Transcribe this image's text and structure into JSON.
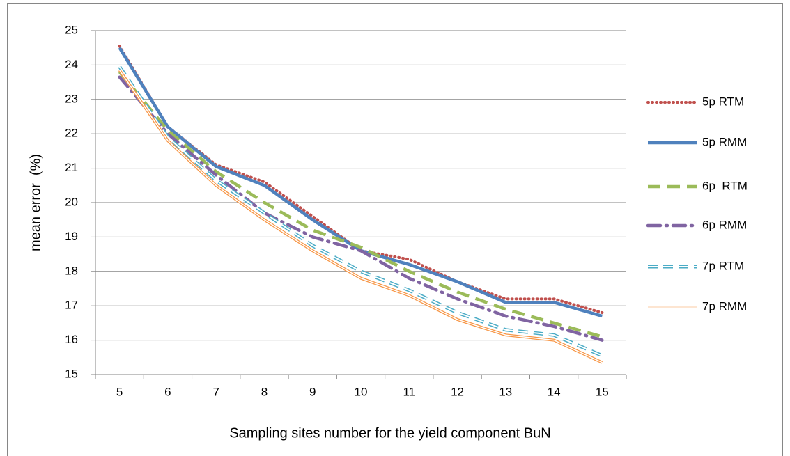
{
  "chart_data": {
    "type": "line",
    "x_label": "Sampling sites number for the yield component BuN",
    "y_label": "mean error  (%)",
    "categories": [
      5,
      6,
      7,
      8,
      9,
      10,
      11,
      12,
      13,
      14,
      15
    ],
    "ylim": [
      15,
      25
    ],
    "yticks": [
      15,
      16,
      17,
      18,
      19,
      20,
      21,
      22,
      23,
      24,
      25
    ],
    "grid": true,
    "legend": "right",
    "series": [
      {
        "name": "5p RTM",
        "color": "#c0504d",
        "style": "dotted",
        "values": [
          24.55,
          22.2,
          21.1,
          20.6,
          19.6,
          18.6,
          18.35,
          17.7,
          17.2,
          17.2,
          16.8
        ]
      },
      {
        "name": "5p RMM",
        "color": "#4f81bd",
        "style": "solid",
        "values": [
          24.5,
          22.2,
          21.05,
          20.5,
          19.5,
          18.6,
          18.2,
          17.7,
          17.1,
          17.1,
          16.7
        ]
      },
      {
        "name": "6p  RTM",
        "color": "#9bbb59",
        "style": "dashed",
        "values": [
          23.8,
          22.1,
          20.9,
          20.0,
          19.2,
          18.7,
          18.0,
          17.4,
          16.9,
          16.5,
          16.1
        ]
      },
      {
        "name": "6p RMM",
        "color": "#8064a2",
        "style": "dashdot",
        "values": [
          23.65,
          22.0,
          20.8,
          19.7,
          19.0,
          18.6,
          17.8,
          17.2,
          16.7,
          16.4,
          16.0
        ]
      },
      {
        "name": "7p RTM",
        "color": "#4bacc6",
        "style": "double-dashed",
        "values": [
          23.95,
          21.9,
          20.65,
          19.7,
          18.75,
          18.0,
          17.45,
          16.8,
          16.3,
          16.15,
          15.55
        ]
      },
      {
        "name": "7p RMM",
        "color": "#f79646",
        "style": "double",
        "values": [
          23.85,
          21.8,
          20.5,
          19.5,
          18.6,
          17.8,
          17.3,
          16.6,
          16.15,
          16.0,
          15.35
        ]
      }
    ]
  }
}
